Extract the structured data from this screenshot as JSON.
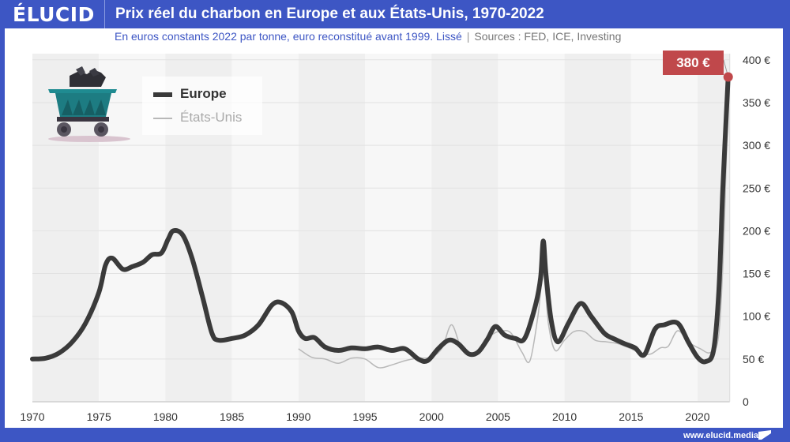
{
  "header": {
    "logo": "ÉLUCID",
    "title": "Prix réel du charbon en Europe et aux États-Unis, 1970-2022"
  },
  "subtitle": {
    "text": "En euros constants 2022 par tonne, euro reconstitué avant 1999. Lissé",
    "separator": "|",
    "sources": "Sources : FED, ICE, Investing"
  },
  "footer": {
    "url": "www.elucid.media"
  },
  "callout": {
    "label": "380 €",
    "color": "#c0484b"
  },
  "colors": {
    "brand": "#3d56c4",
    "europe": "#3a3a3a",
    "us": "#b8b8b8",
    "callout": "#c0484b"
  },
  "chart_data": {
    "type": "line",
    "title": "Prix réel du charbon en Europe et aux États-Unis, 1970-2022",
    "xlabel": "",
    "ylabel": "",
    "xlim": [
      1970,
      2022.3
    ],
    "ylim": [
      0,
      400
    ],
    "grid": true,
    "legend_position": "top-left",
    "x_ticks": [
      "1970",
      "1975",
      "1980",
      "1985",
      "1990",
      "1995",
      "2000",
      "2005",
      "2010",
      "2015",
      "2020"
    ],
    "y_ticks": [
      "0",
      "50 €",
      "100 €",
      "150 €",
      "200 €",
      "250 €",
      "300 €",
      "350 €",
      "400 €"
    ],
    "legend": [
      "Europe",
      "États-Unis"
    ],
    "series": [
      {
        "name": "Europe",
        "points": [
          [
            1970,
            50
          ],
          [
            1971,
            51
          ],
          [
            1972,
            57
          ],
          [
            1973,
            70
          ],
          [
            1974,
            92
          ],
          [
            1975,
            128
          ],
          [
            1975.5,
            160
          ],
          [
            1976,
            168
          ],
          [
            1976.8,
            155
          ],
          [
            1977.5,
            158
          ],
          [
            1978.3,
            163
          ],
          [
            1979,
            172
          ],
          [
            1979.7,
            174
          ],
          [
            1980.2,
            190
          ],
          [
            1980.6,
            200
          ],
          [
            1981.3,
            195
          ],
          [
            1982,
            168
          ],
          [
            1982.8,
            122
          ],
          [
            1983.5,
            80
          ],
          [
            1984,
            72
          ],
          [
            1985,
            74
          ],
          [
            1986,
            78
          ],
          [
            1987,
            90
          ],
          [
            1988,
            113
          ],
          [
            1988.7,
            116
          ],
          [
            1989.5,
            105
          ],
          [
            1990,
            83
          ],
          [
            1990.5,
            74
          ],
          [
            1991.2,
            75
          ],
          [
            1992,
            64
          ],
          [
            1993,
            60
          ],
          [
            1994,
            63
          ],
          [
            1995,
            62
          ],
          [
            1996,
            64
          ],
          [
            1997,
            60
          ],
          [
            1998,
            62
          ],
          [
            1999,
            50
          ],
          [
            1999.7,
            48
          ],
          [
            2000.5,
            62
          ],
          [
            2001.3,
            72
          ],
          [
            2002,
            68
          ],
          [
            2002.8,
            56
          ],
          [
            2003.5,
            58
          ],
          [
            2004.2,
            73
          ],
          [
            2004.8,
            88
          ],
          [
            2005.5,
            78
          ],
          [
            2006.3,
            74
          ],
          [
            2007,
            74
          ],
          [
            2007.8,
            112
          ],
          [
            2008.2,
            145
          ],
          [
            2008.4,
            188
          ],
          [
            2008.6,
            150
          ],
          [
            2009,
            95
          ],
          [
            2009.5,
            70
          ],
          [
            2010.3,
            92
          ],
          [
            2011.2,
            115
          ],
          [
            2012,
            100
          ],
          [
            2013,
            80
          ],
          [
            2013.8,
            73
          ],
          [
            2014.5,
            68
          ],
          [
            2015.3,
            63
          ],
          [
            2016,
            55
          ],
          [
            2016.8,
            85
          ],
          [
            2017.5,
            90
          ],
          [
            2018.5,
            92
          ],
          [
            2019.3,
            70
          ],
          [
            2020,
            52
          ],
          [
            2020.6,
            47
          ],
          [
            2021.2,
            60
          ],
          [
            2021.6,
            130
          ],
          [
            2021.9,
            250
          ],
          [
            2022.3,
            380
          ]
        ]
      },
      {
        "name": "États-Unis",
        "points": [
          [
            1990,
            62
          ],
          [
            1991,
            52
          ],
          [
            1992,
            50
          ],
          [
            1993,
            45
          ],
          [
            1994,
            51
          ],
          [
            1995,
            50
          ],
          [
            1996,
            40
          ],
          [
            1997,
            43
          ],
          [
            1998,
            48
          ],
          [
            1999,
            51
          ],
          [
            2000,
            52
          ],
          [
            2000.8,
            63
          ],
          [
            2001.5,
            90
          ],
          [
            2002.2,
            65
          ],
          [
            2003,
            56
          ],
          [
            2003.8,
            65
          ],
          [
            2004.5,
            78
          ],
          [
            2005.3,
            83
          ],
          [
            2006,
            80
          ],
          [
            2006.8,
            58
          ],
          [
            2007.4,
            48
          ],
          [
            2008,
            100
          ],
          [
            2008.4,
            150
          ],
          [
            2008.8,
            90
          ],
          [
            2009.3,
            60
          ],
          [
            2010,
            72
          ],
          [
            2010.7,
            82
          ],
          [
            2011.5,
            82
          ],
          [
            2012.3,
            72
          ],
          [
            2013.2,
            70
          ],
          [
            2014,
            68
          ],
          [
            2015,
            62
          ],
          [
            2015.8,
            56
          ],
          [
            2016.5,
            56
          ],
          [
            2017.2,
            63
          ],
          [
            2017.8,
            65
          ],
          [
            2018.5,
            83
          ],
          [
            2019.3,
            70
          ],
          [
            2020.2,
            62
          ],
          [
            2021,
            58
          ],
          [
            2021.6,
            80
          ],
          [
            2022,
            200
          ],
          [
            2022.3,
            380
          ]
        ]
      }
    ]
  }
}
